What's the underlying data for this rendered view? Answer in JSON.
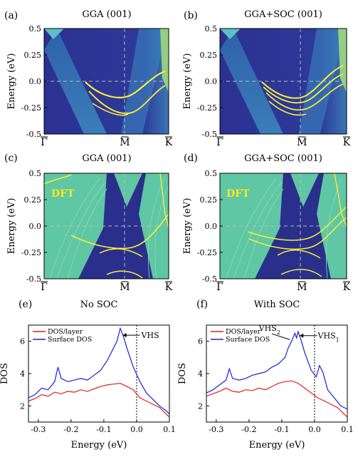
{
  "panels": [
    {
      "id": "a",
      "label": "(a)",
      "title": "GGA (001)",
      "kind": "arpes"
    },
    {
      "id": "b",
      "label": "(b)",
      "title": "GGA+SOC (001)",
      "kind": "arpes"
    },
    {
      "id": "c",
      "label": "(c)",
      "title": "GGA (001)",
      "kind": "dft",
      "annotation": "DFT"
    },
    {
      "id": "d",
      "label": "(d)",
      "title": "GGA+SOC (001)",
      "kind": "dft",
      "annotation": "DFT"
    }
  ],
  "band_axes": {
    "ylabel": "Energy (eV)",
    "yticks": [
      "0.5",
      "0.25",
      "0.0",
      "-0.25",
      "-0.5"
    ],
    "kpoints": [
      "Γ",
      "M",
      "K"
    ]
  },
  "colors": {
    "background": "#2a2f8c",
    "band_bright": "#f6ee3a",
    "continuum": "#5fc7a4",
    "dos_layer": "#e02020",
    "dos_surface": "#1a22d6"
  },
  "chart_data": [
    {
      "id": "e",
      "label": "(e)",
      "type": "line",
      "title": "No SOC",
      "xlabel": "Energy (eV)",
      "ylabel": "DOS",
      "xlim": [
        -0.33,
        0.1
      ],
      "ylim": [
        1,
        7
      ],
      "xticks": [
        "-0.3",
        "-0.2",
        "-0.1",
        "0.0",
        "0.1"
      ],
      "yticks": [
        "2",
        "4",
        "6"
      ],
      "legend": "top-left",
      "annotations": [
        {
          "text": "VHS",
          "x": -0.04,
          "y": 6.2
        }
      ],
      "series": [
        {
          "name": "DOS/layer",
          "color": "#e02020",
          "x": [
            -0.33,
            -0.31,
            -0.29,
            -0.27,
            -0.25,
            -0.23,
            -0.21,
            -0.19,
            -0.17,
            -0.15,
            -0.13,
            -0.11,
            -0.09,
            -0.07,
            -0.05,
            -0.03,
            -0.01,
            0.01,
            0.03,
            0.05,
            0.07,
            0.09,
            0.1
          ],
          "y": [
            2.3,
            2.45,
            2.7,
            2.6,
            2.85,
            2.75,
            2.9,
            2.85,
            3.0,
            2.9,
            3.05,
            3.2,
            3.3,
            3.35,
            3.4,
            3.2,
            3.0,
            2.5,
            2.3,
            2.1,
            1.9,
            1.5,
            1.3
          ]
        },
        {
          "name": "Surface DOS",
          "color": "#1a22d6",
          "x": [
            -0.33,
            -0.31,
            -0.29,
            -0.27,
            -0.25,
            -0.24,
            -0.23,
            -0.21,
            -0.19,
            -0.17,
            -0.15,
            -0.13,
            -0.11,
            -0.09,
            -0.07,
            -0.06,
            -0.05,
            -0.04,
            -0.03,
            -0.01,
            0.01,
            0.03,
            0.05,
            0.07,
            0.09,
            0.1
          ],
          "y": [
            2.5,
            2.7,
            3.1,
            3.0,
            3.5,
            4.4,
            3.7,
            3.5,
            3.6,
            3.7,
            3.6,
            3.9,
            4.2,
            4.8,
            5.6,
            6.0,
            6.8,
            6.3,
            5.6,
            4.4,
            3.5,
            2.8,
            2.4,
            2.0,
            1.7,
            1.5
          ]
        }
      ]
    },
    {
      "id": "f",
      "label": "(f)",
      "type": "line",
      "title": "With SOC",
      "xlabel": "Energy (eV)",
      "ylabel": "DOS",
      "xlim": [
        -0.33,
        0.1
      ],
      "ylim": [
        1,
        7
      ],
      "xticks": [
        "-0.3",
        "-0.2",
        "-0.1",
        "0.0",
        "0.1"
      ],
      "yticks": [
        "2",
        "4",
        "6"
      ],
      "legend": "top-left",
      "annotations": [
        {
          "text": "VHS",
          "sub": "2",
          "x": -0.07,
          "y": 6.1
        },
        {
          "text": "VHS",
          "sub": "1",
          "x": -0.05,
          "y": 6.6
        }
      ],
      "series": [
        {
          "name": "DOS/layer",
          "color": "#e02020",
          "x": [
            -0.33,
            -0.31,
            -0.29,
            -0.27,
            -0.25,
            -0.23,
            -0.21,
            -0.19,
            -0.17,
            -0.15,
            -0.13,
            -0.11,
            -0.09,
            -0.07,
            -0.05,
            -0.03,
            -0.01,
            0.01,
            0.03,
            0.05,
            0.07,
            0.09,
            0.1
          ],
          "y": [
            2.6,
            2.75,
            2.9,
            3.1,
            2.9,
            2.85,
            3.0,
            2.95,
            3.1,
            3.0,
            3.2,
            3.4,
            3.5,
            3.55,
            3.4,
            3.1,
            2.8,
            2.5,
            2.3,
            2.1,
            1.9,
            1.5,
            1.3
          ]
        },
        {
          "name": "Surface DOS",
          "color": "#1a22d6",
          "x": [
            -0.33,
            -0.31,
            -0.29,
            -0.27,
            -0.26,
            -0.25,
            -0.23,
            -0.21,
            -0.19,
            -0.17,
            -0.15,
            -0.13,
            -0.11,
            -0.09,
            -0.08,
            -0.07,
            -0.06,
            -0.055,
            -0.05,
            -0.04,
            -0.03,
            -0.01,
            0.005,
            0.015,
            0.025,
            0.04,
            0.06,
            0.08,
            0.1
          ],
          "y": [
            2.8,
            3.0,
            3.3,
            3.6,
            4.3,
            3.7,
            3.6,
            3.7,
            3.9,
            4.0,
            4.1,
            4.4,
            4.6,
            5.0,
            5.6,
            6.0,
            6.5,
            6.2,
            6.6,
            6.0,
            5.3,
            4.2,
            3.8,
            4.5,
            4.1,
            3.0,
            2.5,
            2.0,
            1.8
          ]
        }
      ]
    }
  ]
}
